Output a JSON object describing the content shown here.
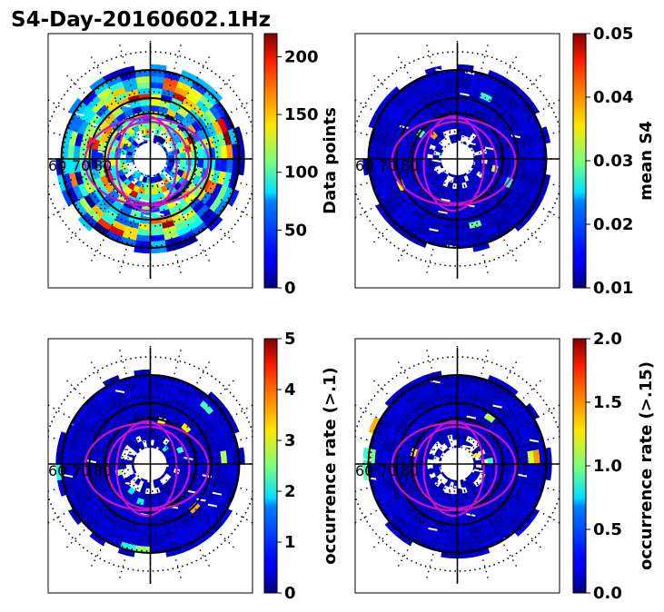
{
  "figure": {
    "title": "S4-Day-20160602.1Hz"
  },
  "chart_data": [
    {
      "type": "heatmap",
      "projection": "polar",
      "colormap": "jet",
      "colorbar": {
        "label": "Data points",
        "range": [
          0,
          220
        ],
        "ticks": [
          "0",
          "50",
          "100",
          "150",
          "200"
        ],
        "tick_values": [
          0,
          50,
          100,
          150,
          200
        ]
      },
      "pattern": "varied",
      "rlabels": [
        "60",
        "70",
        "80"
      ]
    },
    {
      "type": "heatmap",
      "projection": "polar",
      "colormap": "jet",
      "colorbar": {
        "label": "mean S4",
        "range": [
          0.01,
          0.05
        ],
        "ticks": [
          "0.01",
          "0.02",
          "0.03",
          "0.04",
          "0.05"
        ],
        "tick_values": [
          0.01,
          0.02,
          0.03,
          0.04,
          0.05
        ]
      },
      "pattern": "low",
      "rlabels": [
        "60",
        "70",
        "80"
      ]
    },
    {
      "type": "heatmap",
      "projection": "polar",
      "colormap": "jet",
      "colorbar": {
        "label": "occurrence rate (>.1)",
        "range": [
          0,
          5
        ],
        "ticks": [
          "0",
          "1",
          "2",
          "3",
          "4",
          "5"
        ],
        "tick_values": [
          0,
          1,
          2,
          3,
          4,
          5
        ]
      },
      "pattern": "low",
      "rlabels": [
        "60",
        "70",
        "80"
      ]
    },
    {
      "type": "heatmap",
      "projection": "polar",
      "colormap": "jet",
      "colorbar": {
        "label": "occurrence rate (>.15)",
        "range": [
          0,
          2
        ],
        "ticks": [
          "0.0",
          "0.5",
          "1.0",
          "1.5",
          "2.0"
        ],
        "tick_values": [
          0,
          0.5,
          1.0,
          1.5,
          2.0
        ]
      },
      "pattern": "low",
      "rlabels": [
        "60",
        "70",
        "80"
      ]
    }
  ]
}
